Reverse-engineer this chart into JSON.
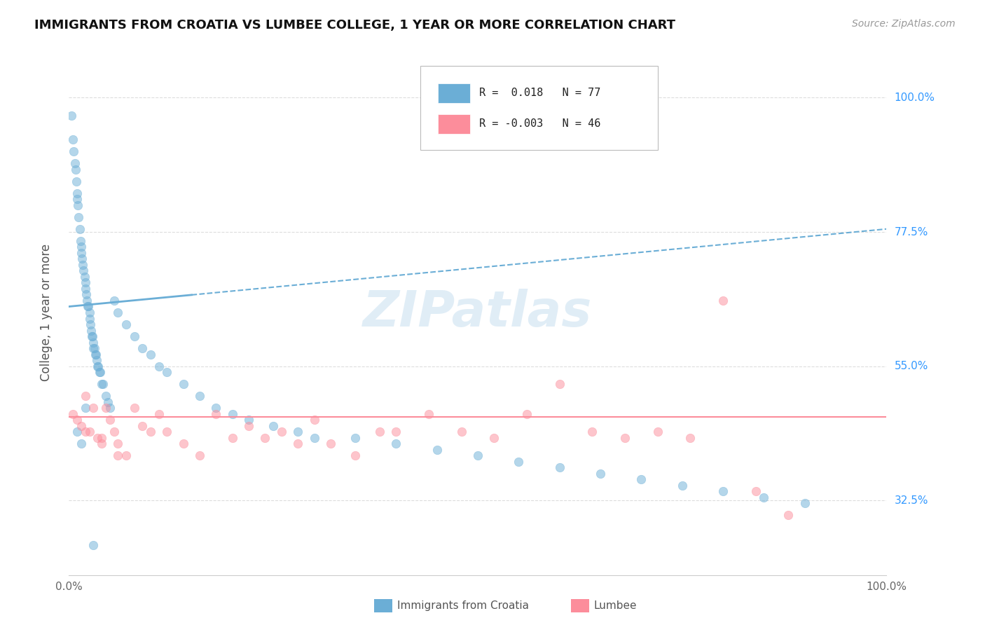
{
  "title": "IMMIGRANTS FROM CROATIA VS LUMBEE COLLEGE, 1 YEAR OR MORE CORRELATION CHART",
  "source_text": "Source: ZipAtlas.com",
  "ylabel": "College, 1 year or more",
  "xlim": [
    0,
    100
  ],
  "ylim": [
    20,
    108
  ],
  "yticks": [
    32.5,
    55.0,
    77.5,
    100.0
  ],
  "xticks": [
    0,
    100
  ],
  "xticklabels": [
    "0.0%",
    "100.0%"
  ],
  "yticklabels": [
    "32.5%",
    "55.0%",
    "77.5%",
    "100.0%"
  ],
  "croatia_color": "#6baed6",
  "lumbee_color": "#fc8d9b",
  "croatia_R": 0.018,
  "croatia_N": 77,
  "lumbee_R": -0.003,
  "lumbee_N": 46,
  "legend_R1": "0.018",
  "legend_R2": "-0.003",
  "watermark": "ZIPatlas",
  "background_color": "#ffffff",
  "grid_color": "#dddddd",
  "bottom_legend": [
    {
      "label": "Immigrants from Croatia",
      "color": "#6baed6"
    },
    {
      "label": "Lumbee",
      "color": "#fc8d9b"
    }
  ],
  "croatia_x": [
    0.3,
    0.5,
    0.6,
    0.7,
    0.8,
    0.9,
    1.0,
    1.0,
    1.1,
    1.2,
    1.3,
    1.4,
    1.5,
    1.5,
    1.6,
    1.7,
    1.8,
    1.9,
    2.0,
    2.0,
    2.1,
    2.2,
    2.3,
    2.4,
    2.5,
    2.5,
    2.6,
    2.7,
    2.8,
    2.9,
    3.0,
    3.0,
    3.1,
    3.2,
    3.3,
    3.4,
    3.5,
    3.6,
    3.7,
    3.8,
    4.0,
    4.2,
    4.5,
    4.8,
    5.0,
    5.5,
    6.0,
    7.0,
    8.0,
    9.0,
    10.0,
    11.0,
    12.0,
    14.0,
    16.0,
    18.0,
    20.0,
    22.0,
    25.0,
    28.0,
    30.0,
    35.0,
    40.0,
    45.0,
    50.0,
    55.0,
    60.0,
    65.0,
    70.0,
    75.0,
    80.0,
    85.0,
    90.0,
    1.0,
    1.5,
    2.0,
    3.0
  ],
  "croatia_y": [
    97,
    93,
    91,
    89,
    88,
    86,
    84,
    83,
    82,
    80,
    78,
    76,
    75,
    74,
    73,
    72,
    71,
    70,
    69,
    68,
    67,
    66,
    65,
    65,
    64,
    63,
    62,
    61,
    60,
    60,
    59,
    58,
    58,
    57,
    57,
    56,
    55,
    55,
    54,
    54,
    52,
    52,
    50,
    49,
    48,
    66,
    64,
    62,
    60,
    58,
    57,
    55,
    54,
    52,
    50,
    48,
    47,
    46,
    45,
    44,
    43,
    43,
    42,
    41,
    40,
    39,
    38,
    37,
    36,
    35,
    34,
    33,
    32,
    44,
    42,
    48,
    25
  ],
  "lumbee_x": [
    0.5,
    1.0,
    1.5,
    2.0,
    2.5,
    3.0,
    3.5,
    4.0,
    4.5,
    5.0,
    5.5,
    6.0,
    7.0,
    8.0,
    9.0,
    10.0,
    11.0,
    12.0,
    14.0,
    16.0,
    18.0,
    20.0,
    22.0,
    24.0,
    26.0,
    28.0,
    30.0,
    32.0,
    35.0,
    38.0,
    40.0,
    44.0,
    48.0,
    52.0,
    56.0,
    60.0,
    64.0,
    68.0,
    72.0,
    76.0,
    80.0,
    84.0,
    88.0,
    2.0,
    4.0,
    6.0
  ],
  "lumbee_y": [
    47,
    46,
    45,
    44,
    44,
    48,
    43,
    43,
    48,
    46,
    44,
    42,
    40,
    48,
    45,
    44,
    47,
    44,
    42,
    40,
    47,
    43,
    45,
    43,
    44,
    42,
    46,
    42,
    40,
    44,
    44,
    47,
    44,
    43,
    47,
    52,
    44,
    43,
    44,
    43,
    66,
    34,
    30,
    50,
    42,
    40
  ],
  "trend_croatia_x0": 0,
  "trend_croatia_y0": 65.0,
  "trend_croatia_x1": 100,
  "trend_croatia_y1": 78.0,
  "trend_lumbee_x0": 0,
  "trend_lumbee_y0": 46.5,
  "trend_lumbee_x1": 100,
  "trend_lumbee_y1": 46.5
}
